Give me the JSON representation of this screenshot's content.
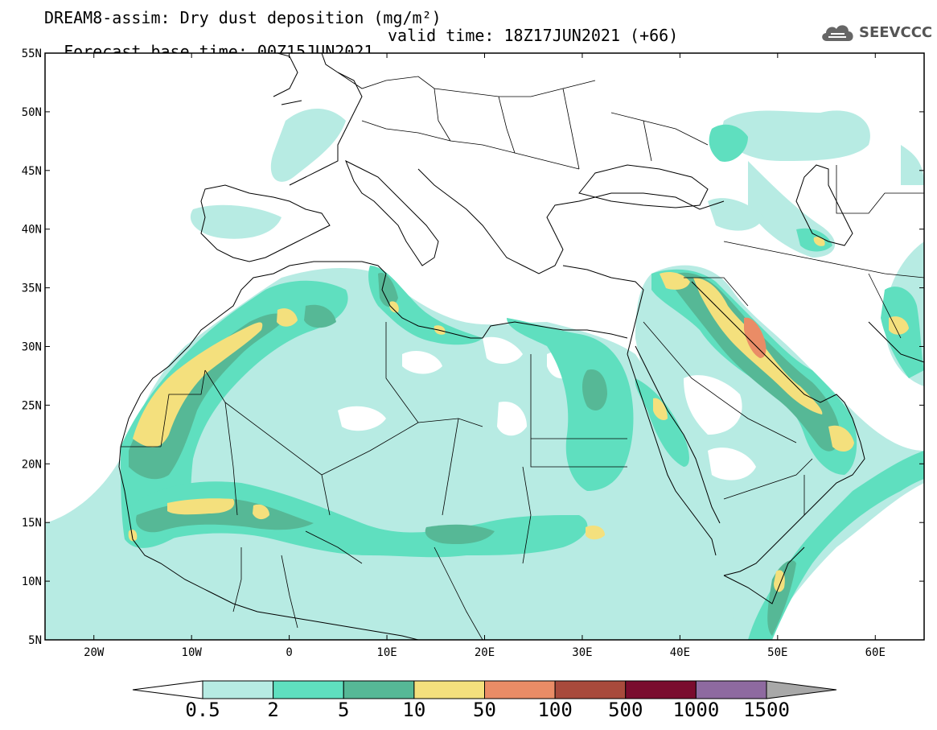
{
  "header": {
    "title_line1": "DREAM8-assim: Dry dust deposition (mg/m²)",
    "base_time": "Forecast base time: 00Z15JUN2021",
    "valid_time": "valid time: 18Z17JUN2021 (+66)"
  },
  "logo": {
    "text": "SEEVCCC",
    "icon": "cloud-icon"
  },
  "axes": {
    "lat_labels": [
      "55N",
      "50N",
      "45N",
      "40N",
      "35N",
      "30N",
      "25N",
      "20N",
      "15N",
      "10N",
      "5N"
    ],
    "lon_labels": [
      "20W",
      "10W",
      "0",
      "10E",
      "20E",
      "30E",
      "40E",
      "50E",
      "60E"
    ]
  },
  "colorbar": {
    "labels": [
      "0.5",
      "2",
      "5",
      "10",
      "50",
      "100",
      "500",
      "1000",
      "1500"
    ],
    "colors": [
      "#ffffff",
      "#b7ebe3",
      "#5fdfbf",
      "#56b896",
      "#f4e07d",
      "#ea8c66",
      "#a84a3c",
      "#7a0c2e",
      "#8e6aa0",
      "#a8a8a8"
    ]
  },
  "legend_levels": {
    "lt_2": "#b7ebe3",
    "2_5": "#5fdfbf",
    "5_10": "#56b896",
    "10_50": "#f4e07d",
    "50_100": "#ea8c66",
    "100_500": "#a84a3c"
  }
}
